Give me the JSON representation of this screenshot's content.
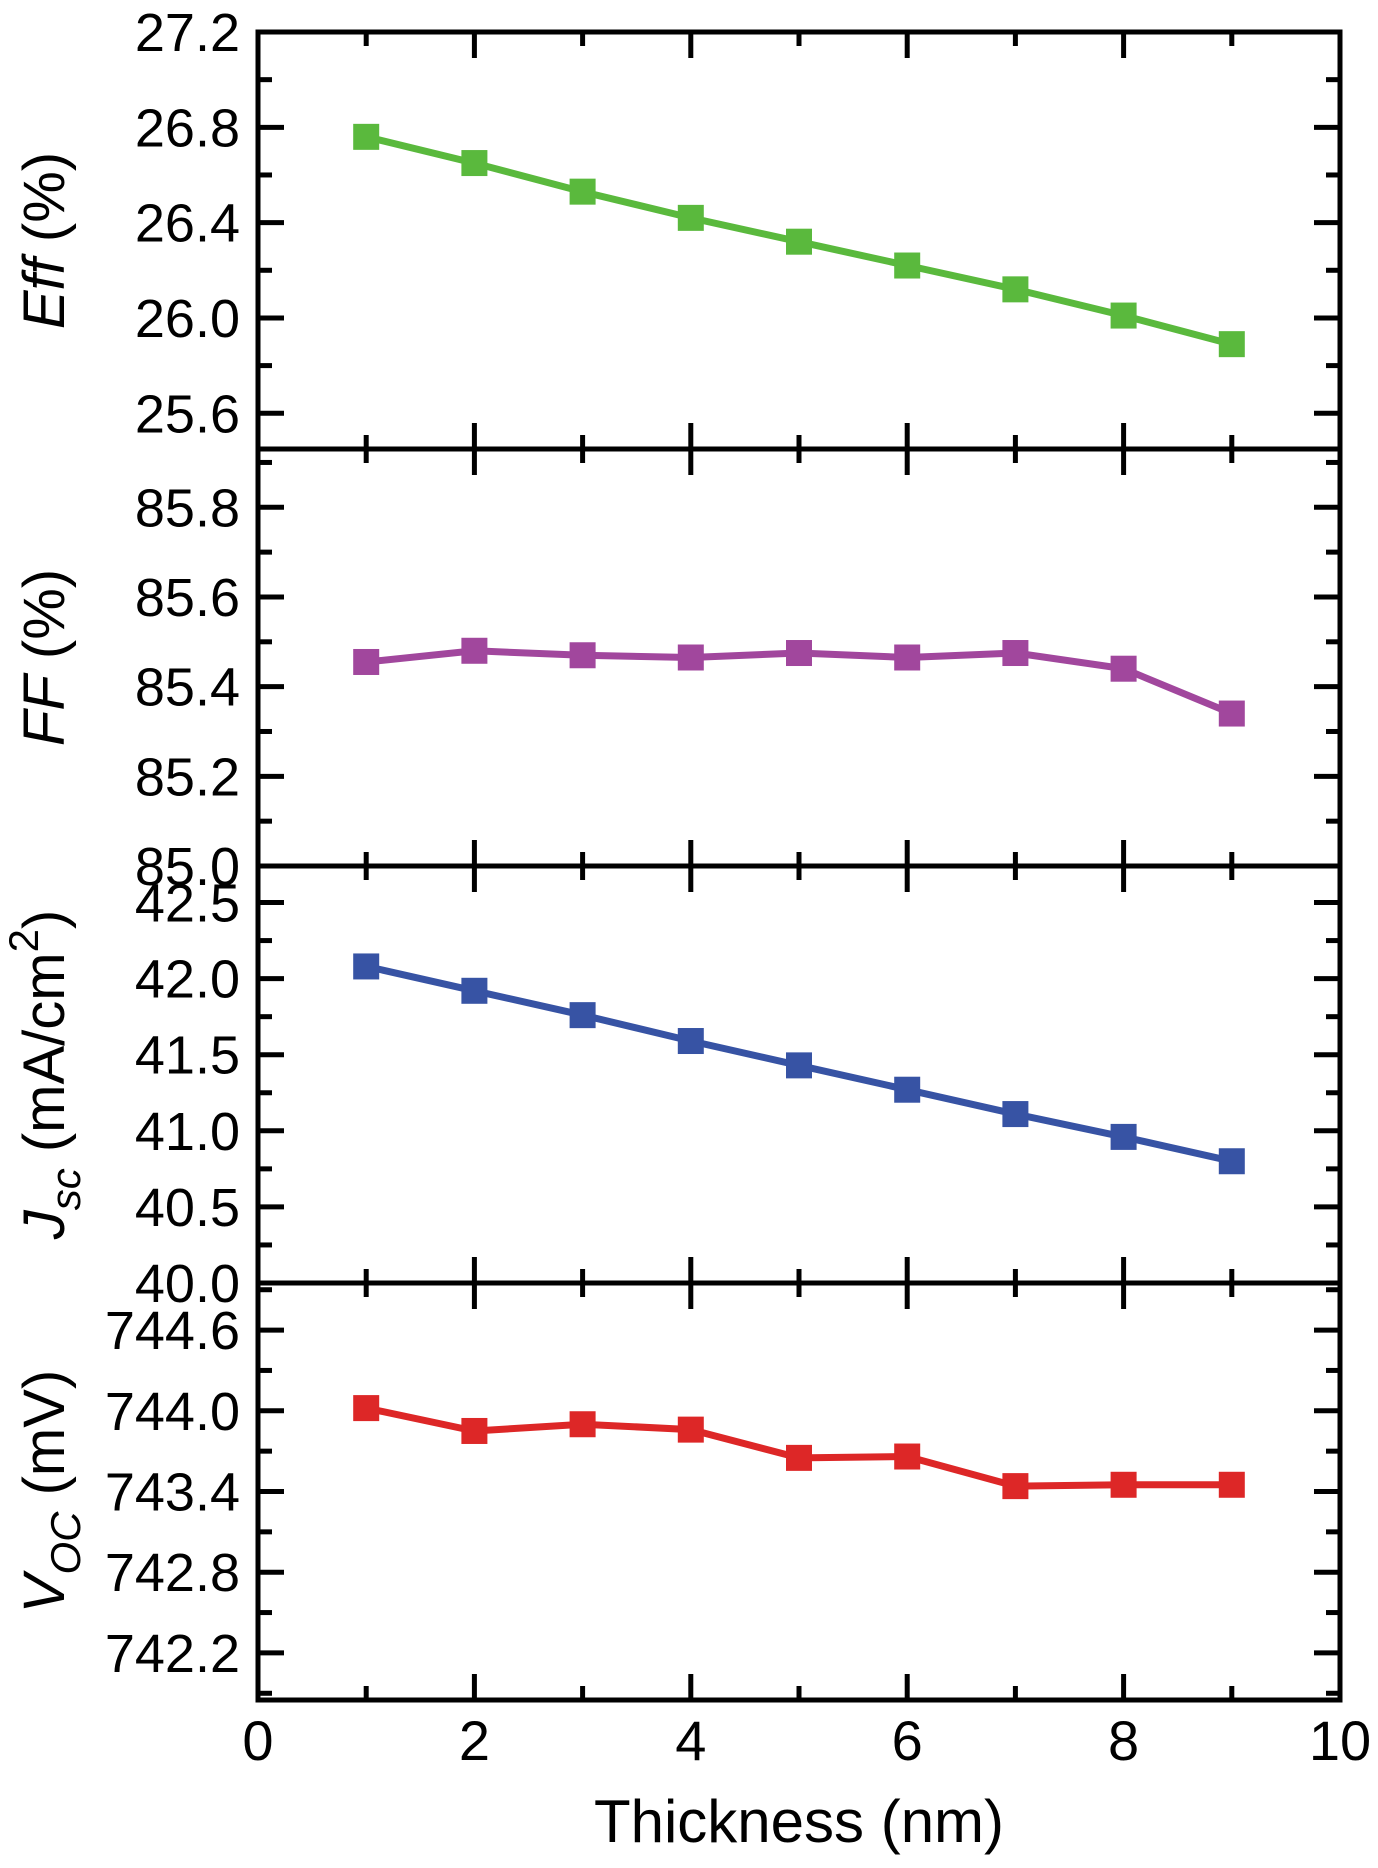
{
  "chart_data": {
    "type": "line",
    "title": "",
    "xlabel": "Thickness (nm)",
    "x": [
      1,
      2,
      3,
      4,
      5,
      6,
      7,
      8,
      9
    ],
    "xlim": [
      0,
      10
    ],
    "x_major_ticks": [
      0,
      2,
      4,
      6,
      8,
      10
    ],
    "x_minor_ticks": [
      1,
      3,
      5,
      7,
      9
    ],
    "background": "#ffffff",
    "axis_color": "#000000",
    "grid": "off",
    "legend": "none",
    "marker": "square",
    "panels": [
      {
        "name": "Eff",
        "ylabel": "Eff (%)",
        "ylabel_parts": [
          {
            "text": "Eff",
            "italic": true
          },
          {
            "text": " (%)"
          }
        ],
        "color": "#5ab93d",
        "ylim": [
          25.45,
          27.2
        ],
        "y_major_ticks": [
          27.2,
          26.8,
          26.4,
          26.0,
          25.6
        ],
        "y_minor_ticks": [
          27.0,
          26.6,
          26.2,
          25.8
        ],
        "values": [
          26.76,
          26.65,
          26.53,
          26.42,
          26.32,
          26.22,
          26.12,
          26.01,
          25.89
        ]
      },
      {
        "name": "FF",
        "ylabel": "FF (%)",
        "ylabel_parts": [
          {
            "text": "FF",
            "italic": true
          },
          {
            "text": " (%)"
          }
        ],
        "color": "#a1479d",
        "ylim": [
          85.0,
          85.93
        ],
        "y_major_ticks": [
          85.8,
          85.6,
          85.4,
          85.2,
          85.0
        ],
        "y_minor_ticks": [
          85.9,
          85.7,
          85.5,
          85.3,
          85.1
        ],
        "values": [
          85.455,
          85.48,
          85.47,
          85.465,
          85.475,
          85.465,
          85.475,
          85.44,
          85.34
        ]
      },
      {
        "name": "Jsc",
        "ylabel": "Jsc (mA/cm2)",
        "ylabel_parts": [
          {
            "text": "J",
            "italic": true
          },
          {
            "text": "sc",
            "italic": true,
            "shift": "sub"
          },
          {
            "text": " (mA/cm"
          },
          {
            "text": "2",
            "shift": "sup"
          },
          {
            "text": ")"
          }
        ],
        "color": "#3753a4",
        "ylim": [
          40.0,
          42.74
        ],
        "y_major_ticks": [
          42.5,
          42.0,
          41.5,
          41.0,
          40.5,
          40.0
        ],
        "y_minor_ticks": [
          42.25,
          41.75,
          41.25,
          40.75,
          40.25
        ],
        "values": [
          42.08,
          41.92,
          41.76,
          41.59,
          41.43,
          41.27,
          41.11,
          40.96,
          40.8
        ]
      },
      {
        "name": "Voc",
        "ylabel": "Voc (mV)",
        "ylabel_parts": [
          {
            "text": "V",
            "italic": true
          },
          {
            "text": "OC",
            "italic": true,
            "shift": "sub"
          },
          {
            "text": " (mV)"
          }
        ],
        "color": "#dd2727",
        "ylim": [
          741.85,
          744.95
        ],
        "y_major_ticks": [
          744.6,
          744.0,
          743.4,
          742.8,
          742.2
        ],
        "y_minor_ticks": [
          744.9,
          744.3,
          743.7,
          743.1,
          742.5,
          741.9
        ],
        "values": [
          744.02,
          743.85,
          743.9,
          743.86,
          743.65,
          743.66,
          743.44,
          743.45,
          743.45
        ]
      }
    ]
  }
}
